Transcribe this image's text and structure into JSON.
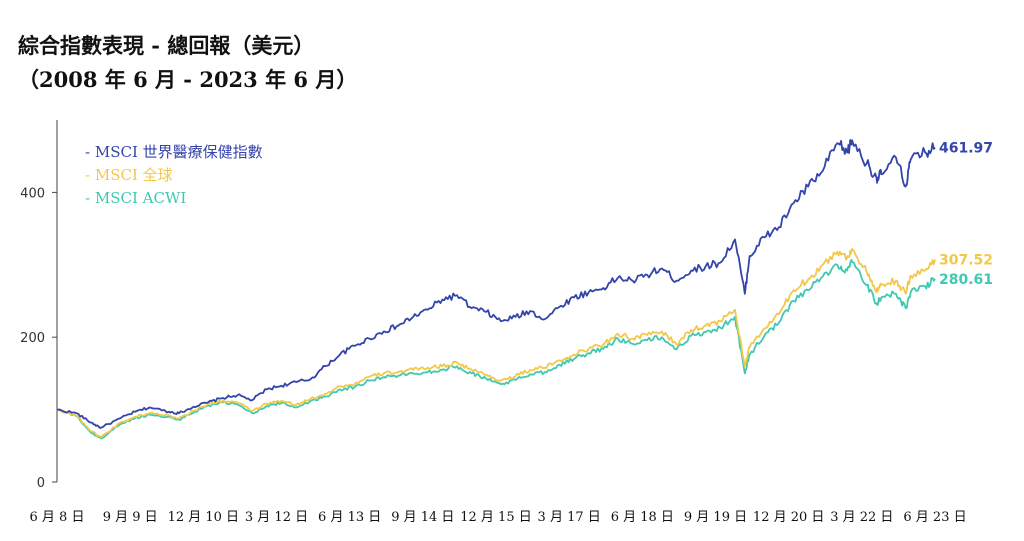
{
  "title_line1": "綜合指數表現 - 總回報（美元）",
  "title_line2": "（2008 年 6 月 - 2023 年 6 月）",
  "chart_data": {
    "type": "line",
    "title": "綜合指數表現 - 總回報（美元）",
    "subtitle": "（2008 年 6 月 - 2023 年 6 月）",
    "xlabel": "",
    "ylabel": "",
    "ylim": [
      0,
      500
    ],
    "yticks": [
      0,
      200,
      400
    ],
    "grid": false,
    "legend_position": "top-left",
    "xtick_labels": [
      "6 月 8 日",
      "9 月 9 日",
      "12 月 10 日",
      "3 月 12 日",
      "6 月 13 日",
      "9 月 14 日",
      "12 月 15 日",
      "3 月 17 日",
      "6 月 18 日",
      "9 月 19 日",
      "12 月 20 日",
      "3 月 22 日",
      "6 月 23 日"
    ],
    "xtick_dates": [
      2008.417,
      2009.667,
      2010.917,
      2012.167,
      2013.417,
      2014.667,
      2015.917,
      2017.167,
      2018.417,
      2019.667,
      2020.917,
      2022.167,
      2023.417
    ],
    "x_range": [
      2008.417,
      2023.417
    ],
    "series": [
      {
        "name": "MSCI 世界醫療保健指數",
        "legend_label": "- MSCI 世界醫療保健指數",
        "color": "#3344aa",
        "end_value_label": "461.97",
        "x": [
          2008.417,
          2008.75,
          2009.0,
          2009.167,
          2009.5,
          2009.75,
          2010.0,
          2010.333,
          2010.5,
          2010.75,
          2011.0,
          2011.25,
          2011.5,
          2011.75,
          2012.0,
          2012.25,
          2012.5,
          2012.75,
          2013.0,
          2013.25,
          2013.5,
          2013.75,
          2014.0,
          2014.25,
          2014.5,
          2014.75,
          2015.0,
          2015.25,
          2015.5,
          2015.75,
          2016.0,
          2016.25,
          2016.5,
          2016.75,
          2017.0,
          2017.25,
          2017.5,
          2017.75,
          2018.0,
          2018.25,
          2018.5,
          2018.75,
          2019.0,
          2019.25,
          2019.5,
          2019.75,
          2020.0,
          2020.167,
          2020.25,
          2020.5,
          2020.75,
          2021.0,
          2021.25,
          2021.5,
          2021.75,
          2021.917,
          2022.0,
          2022.25,
          2022.417,
          2022.5,
          2022.75,
          2022.917,
          2023.0,
          2023.25,
          2023.417
        ],
        "y": [
          100,
          95,
          82,
          75,
          88,
          97,
          103,
          97,
          95,
          104,
          110,
          116,
          120,
          113,
          128,
          133,
          138,
          142,
          160,
          176,
          188,
          198,
          208,
          216,
          228,
          238,
          252,
          258,
          240,
          235,
          222,
          228,
          236,
          225,
          242,
          255,
          262,
          268,
          282,
          278,
          286,
          295,
          278,
          292,
          298,
          303,
          335,
          260,
          312,
          338,
          352,
          385,
          408,
          430,
          468,
          455,
          472,
          440,
          420,
          425,
          448,
          408,
          445,
          455,
          461.97
        ]
      },
      {
        "name": "MSCI 全球",
        "legend_label": "- MSCI 全球",
        "color": "#f2c84b",
        "end_value_label": "307.52",
        "x": [
          2008.417,
          2008.75,
          2009.0,
          2009.167,
          2009.5,
          2009.75,
          2010.0,
          2010.333,
          2010.5,
          2010.75,
          2011.0,
          2011.25,
          2011.5,
          2011.75,
          2012.0,
          2012.25,
          2012.5,
          2012.75,
          2013.0,
          2013.25,
          2013.5,
          2013.75,
          2014.0,
          2014.25,
          2014.5,
          2014.75,
          2015.0,
          2015.25,
          2015.5,
          2015.75,
          2016.0,
          2016.25,
          2016.5,
          2016.75,
          2017.0,
          2017.25,
          2017.5,
          2017.75,
          2018.0,
          2018.25,
          2018.5,
          2018.75,
          2019.0,
          2019.25,
          2019.5,
          2019.75,
          2020.0,
          2020.167,
          2020.25,
          2020.5,
          2020.75,
          2021.0,
          2021.25,
          2021.5,
          2021.75,
          2021.917,
          2022.0,
          2022.25,
          2022.417,
          2022.5,
          2022.75,
          2022.917,
          2023.0,
          2023.25,
          2023.417
        ],
        "y": [
          100,
          92,
          70,
          62,
          82,
          90,
          95,
          92,
          88,
          98,
          108,
          112,
          110,
          98,
          108,
          112,
          106,
          115,
          122,
          132,
          135,
          145,
          150,
          152,
          155,
          158,
          160,
          165,
          155,
          148,
          140,
          146,
          155,
          158,
          168,
          176,
          184,
          190,
          205,
          198,
          203,
          208,
          190,
          210,
          216,
          222,
          238,
          160,
          186,
          212,
          232,
          265,
          280,
          300,
          318,
          310,
          322,
          290,
          262,
          272,
          278,
          260,
          285,
          292,
          307.52
        ]
      },
      {
        "name": "MSCI ACWI",
        "legend_label": "- MSCI ACWI",
        "color": "#3fc9b0",
        "end_value_label": "280.61",
        "x": [
          2008.417,
          2008.75,
          2009.0,
          2009.167,
          2009.5,
          2009.75,
          2010.0,
          2010.333,
          2010.5,
          2010.75,
          2011.0,
          2011.25,
          2011.5,
          2011.75,
          2012.0,
          2012.25,
          2012.5,
          2012.75,
          2013.0,
          2013.25,
          2013.5,
          2013.75,
          2014.0,
          2014.25,
          2014.5,
          2014.75,
          2015.0,
          2015.25,
          2015.5,
          2015.75,
          2016.0,
          2016.25,
          2016.5,
          2016.75,
          2017.0,
          2017.25,
          2017.5,
          2017.75,
          2018.0,
          2018.25,
          2018.5,
          2018.75,
          2019.0,
          2019.25,
          2019.5,
          2019.75,
          2020.0,
          2020.167,
          2020.25,
          2020.5,
          2020.75,
          2021.0,
          2021.25,
          2021.5,
          2021.75,
          2021.917,
          2022.0,
          2022.25,
          2022.417,
          2022.5,
          2022.75,
          2022.917,
          2023.0,
          2023.25,
          2023.417
        ],
        "y": [
          100,
          91,
          68,
          60,
          80,
          88,
          93,
          90,
          86,
          96,
          106,
          110,
          107,
          95,
          105,
          109,
          103,
          112,
          118,
          128,
          131,
          140,
          145,
          147,
          150,
          152,
          155,
          160,
          150,
          143,
          135,
          141,
          149,
          152,
          162,
          170,
          178,
          184,
          198,
          191,
          196,
          200,
          183,
          202,
          207,
          213,
          228,
          150,
          176,
          202,
          220,
          250,
          265,
          284,
          300,
          292,
          304,
          272,
          246,
          255,
          260,
          240,
          262,
          270,
          280.61
        ]
      }
    ]
  }
}
